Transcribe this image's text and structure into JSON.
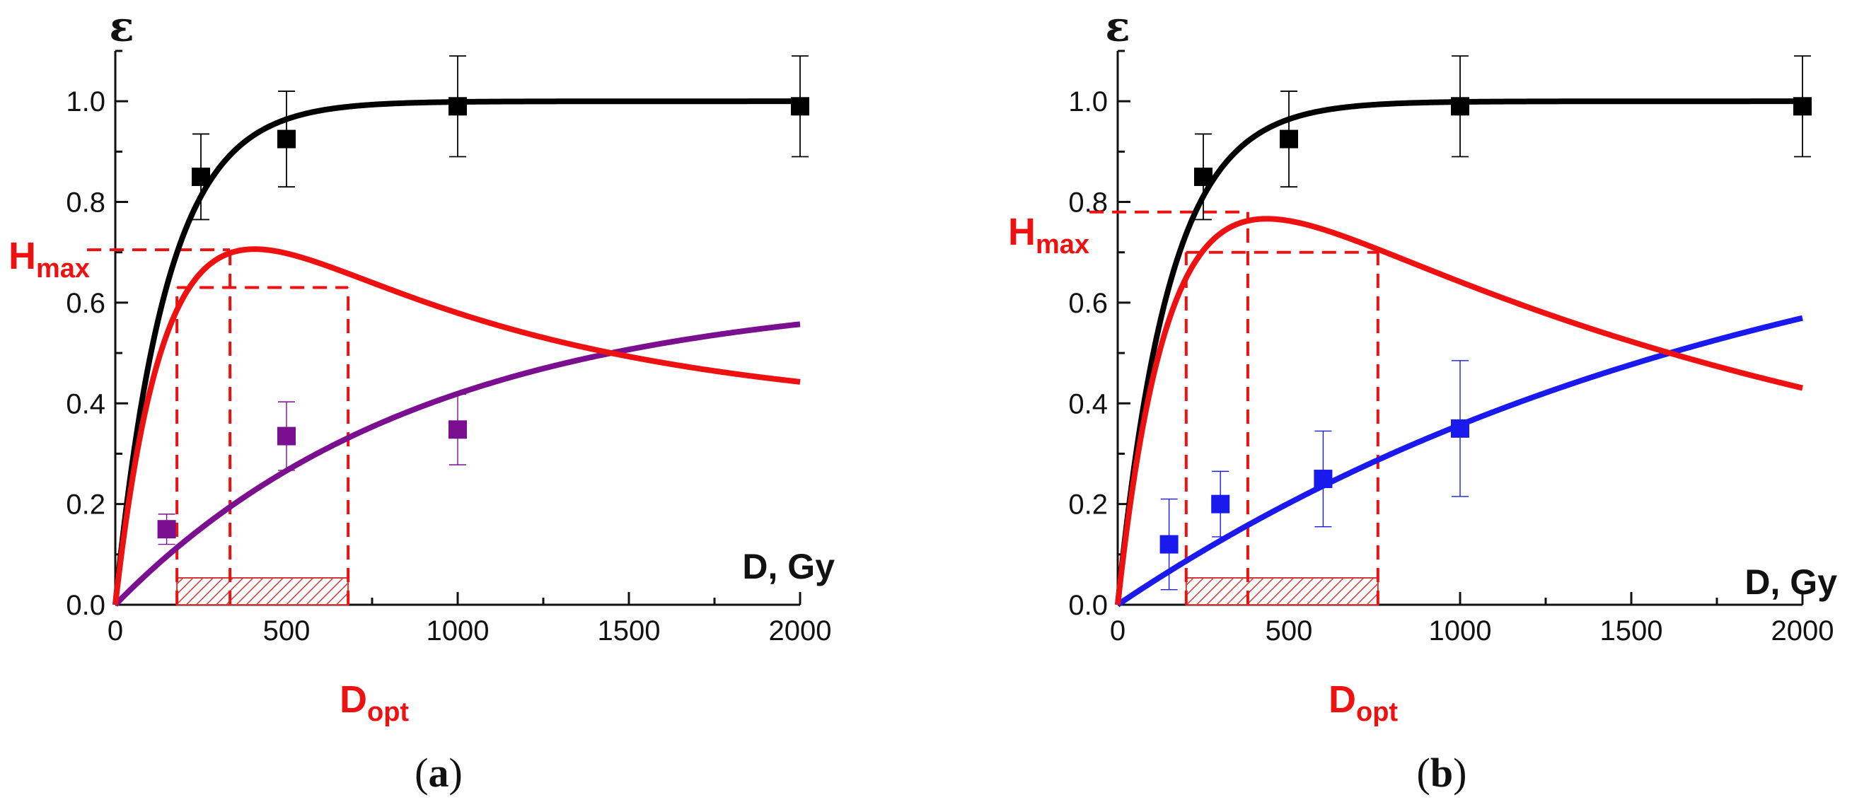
{
  "figure": {
    "panels": [
      {
        "id": "a",
        "panel_label": {
          "open": "(",
          "letter": "a",
          "close": ")"
        },
        "chart_data": {
          "type": "line",
          "title": "",
          "y_axis_symbol": "ε",
          "xlabel": "D, Gy",
          "ylabel": "ε",
          "xlim": [
            0,
            2000
          ],
          "ylim": [
            0,
            1.1
          ],
          "xticks": [
            0,
            500,
            1000,
            1500,
            2000
          ],
          "xtick_labels": [
            "0",
            "500",
            "1000",
            "1500",
            "2000"
          ],
          "yticks": [
            0,
            0.2,
            0.4,
            0.6,
            0.8,
            1.0
          ],
          "ytick_labels": [
            "0.0",
            "0.2",
            "0.4",
            "0.6",
            "0.8",
            "1.0"
          ],
          "grid": false,
          "series": [
            {
              "name": "black",
              "color": "#000000",
              "curve": {
                "model": "saturation",
                "amplitude": 1.0,
                "d0": 150,
                "exponent": 1
              },
              "points": [
                {
                  "x": 250,
                  "y": 0.85,
                  "err": 0.085
                },
                {
                  "x": 500,
                  "y": 0.925,
                  "err": 0.095
                },
                {
                  "x": 1000,
                  "y": 0.99,
                  "err": 0.1
                },
                {
                  "x": 2000,
                  "y": 0.99,
                  "err": 0.1
                }
              ]
            },
            {
              "name": "purple",
              "color": "#7a0f8f",
              "curve": {
                "model": "saturation",
                "amplitude": 0.625,
                "d0": 900,
                "exponent": 1
              },
              "points": [
                {
                  "x": 150,
                  "y": 0.15,
                  "err": 0.03
                },
                {
                  "x": 500,
                  "y": 0.335,
                  "err": 0.068
                },
                {
                  "x": 1000,
                  "y": 0.348,
                  "err": 0.07
                }
              ]
            },
            {
              "name": "red",
              "color": "#ee1111",
              "curve": {
                "model": "difference",
                "of": [
                  0,
                  1
                ],
                "amplitude": 1.0
              },
              "points": []
            }
          ],
          "annotations": {
            "H_max": {
              "label_main": "H",
              "label_sub": "max",
              "y": 0.705,
              "x_peak": 335
            },
            "D_opt": {
              "label_main": "D",
              "label_sub": "opt",
              "x_from": 180,
              "x_to": 680,
              "y_level": 0.63
            },
            "color": "#ee1111"
          }
        }
      },
      {
        "id": "b",
        "panel_label": {
          "open": "(",
          "letter": "b",
          "close": ")"
        },
        "chart_data": {
          "type": "line",
          "title": "",
          "y_axis_symbol": "ε",
          "xlabel": "D, Gy",
          "ylabel": "ε",
          "xlim": [
            0,
            2000
          ],
          "ylim": [
            0,
            1.1
          ],
          "xticks": [
            0,
            500,
            1000,
            1500,
            2000
          ],
          "xtick_labels": [
            "0",
            "500",
            "1000",
            "1500",
            "2000"
          ],
          "yticks": [
            0,
            0.2,
            0.4,
            0.6,
            0.8,
            1.0
          ],
          "ytick_labels": [
            "0.0",
            "0.2",
            "0.4",
            "0.6",
            "0.8",
            "1.0"
          ],
          "grid": false,
          "series": [
            {
              "name": "black",
              "color": "#000000",
              "curve": {
                "model": "saturation",
                "amplitude": 1.0,
                "d0": 150,
                "exponent": 1
              },
              "points": [
                {
                  "x": 250,
                  "y": 0.85,
                  "err": 0.085
                },
                {
                  "x": 500,
                  "y": 0.925,
                  "err": 0.095
                },
                {
                  "x": 1000,
                  "y": 0.99,
                  "err": 0.1
                },
                {
                  "x": 2000,
                  "y": 0.99,
                  "err": 0.1
                }
              ]
            },
            {
              "name": "blue",
              "color": "#1a1aee",
              "curve": {
                "model": "saturation",
                "amplitude": 0.88,
                "d0": 1920,
                "exponent": 1
              },
              "points": [
                {
                  "x": 150,
                  "y": 0.12,
                  "err": 0.09
                },
                {
                  "x": 300,
                  "y": 0.2,
                  "err": 0.065
                },
                {
                  "x": 600,
                  "y": 0.25,
                  "err": 0.095
                },
                {
                  "x": 1000,
                  "y": 0.35,
                  "err": 0.135
                }
              ]
            },
            {
              "name": "red",
              "color": "#ee1111",
              "curve": {
                "model": "difference",
                "of": [
                  0,
                  1
                ],
                "amplitude": 1.0
              },
              "points": []
            }
          ],
          "annotations": {
            "H_max": {
              "label_main": "H",
              "label_sub": "max",
              "y": 0.78,
              "x_peak": 380
            },
            "D_opt": {
              "label_main": "D",
              "label_sub": "opt",
              "x_from": 200,
              "x_to": 760,
              "y_level": 0.7
            },
            "color": "#ee1111"
          }
        }
      }
    ]
  }
}
